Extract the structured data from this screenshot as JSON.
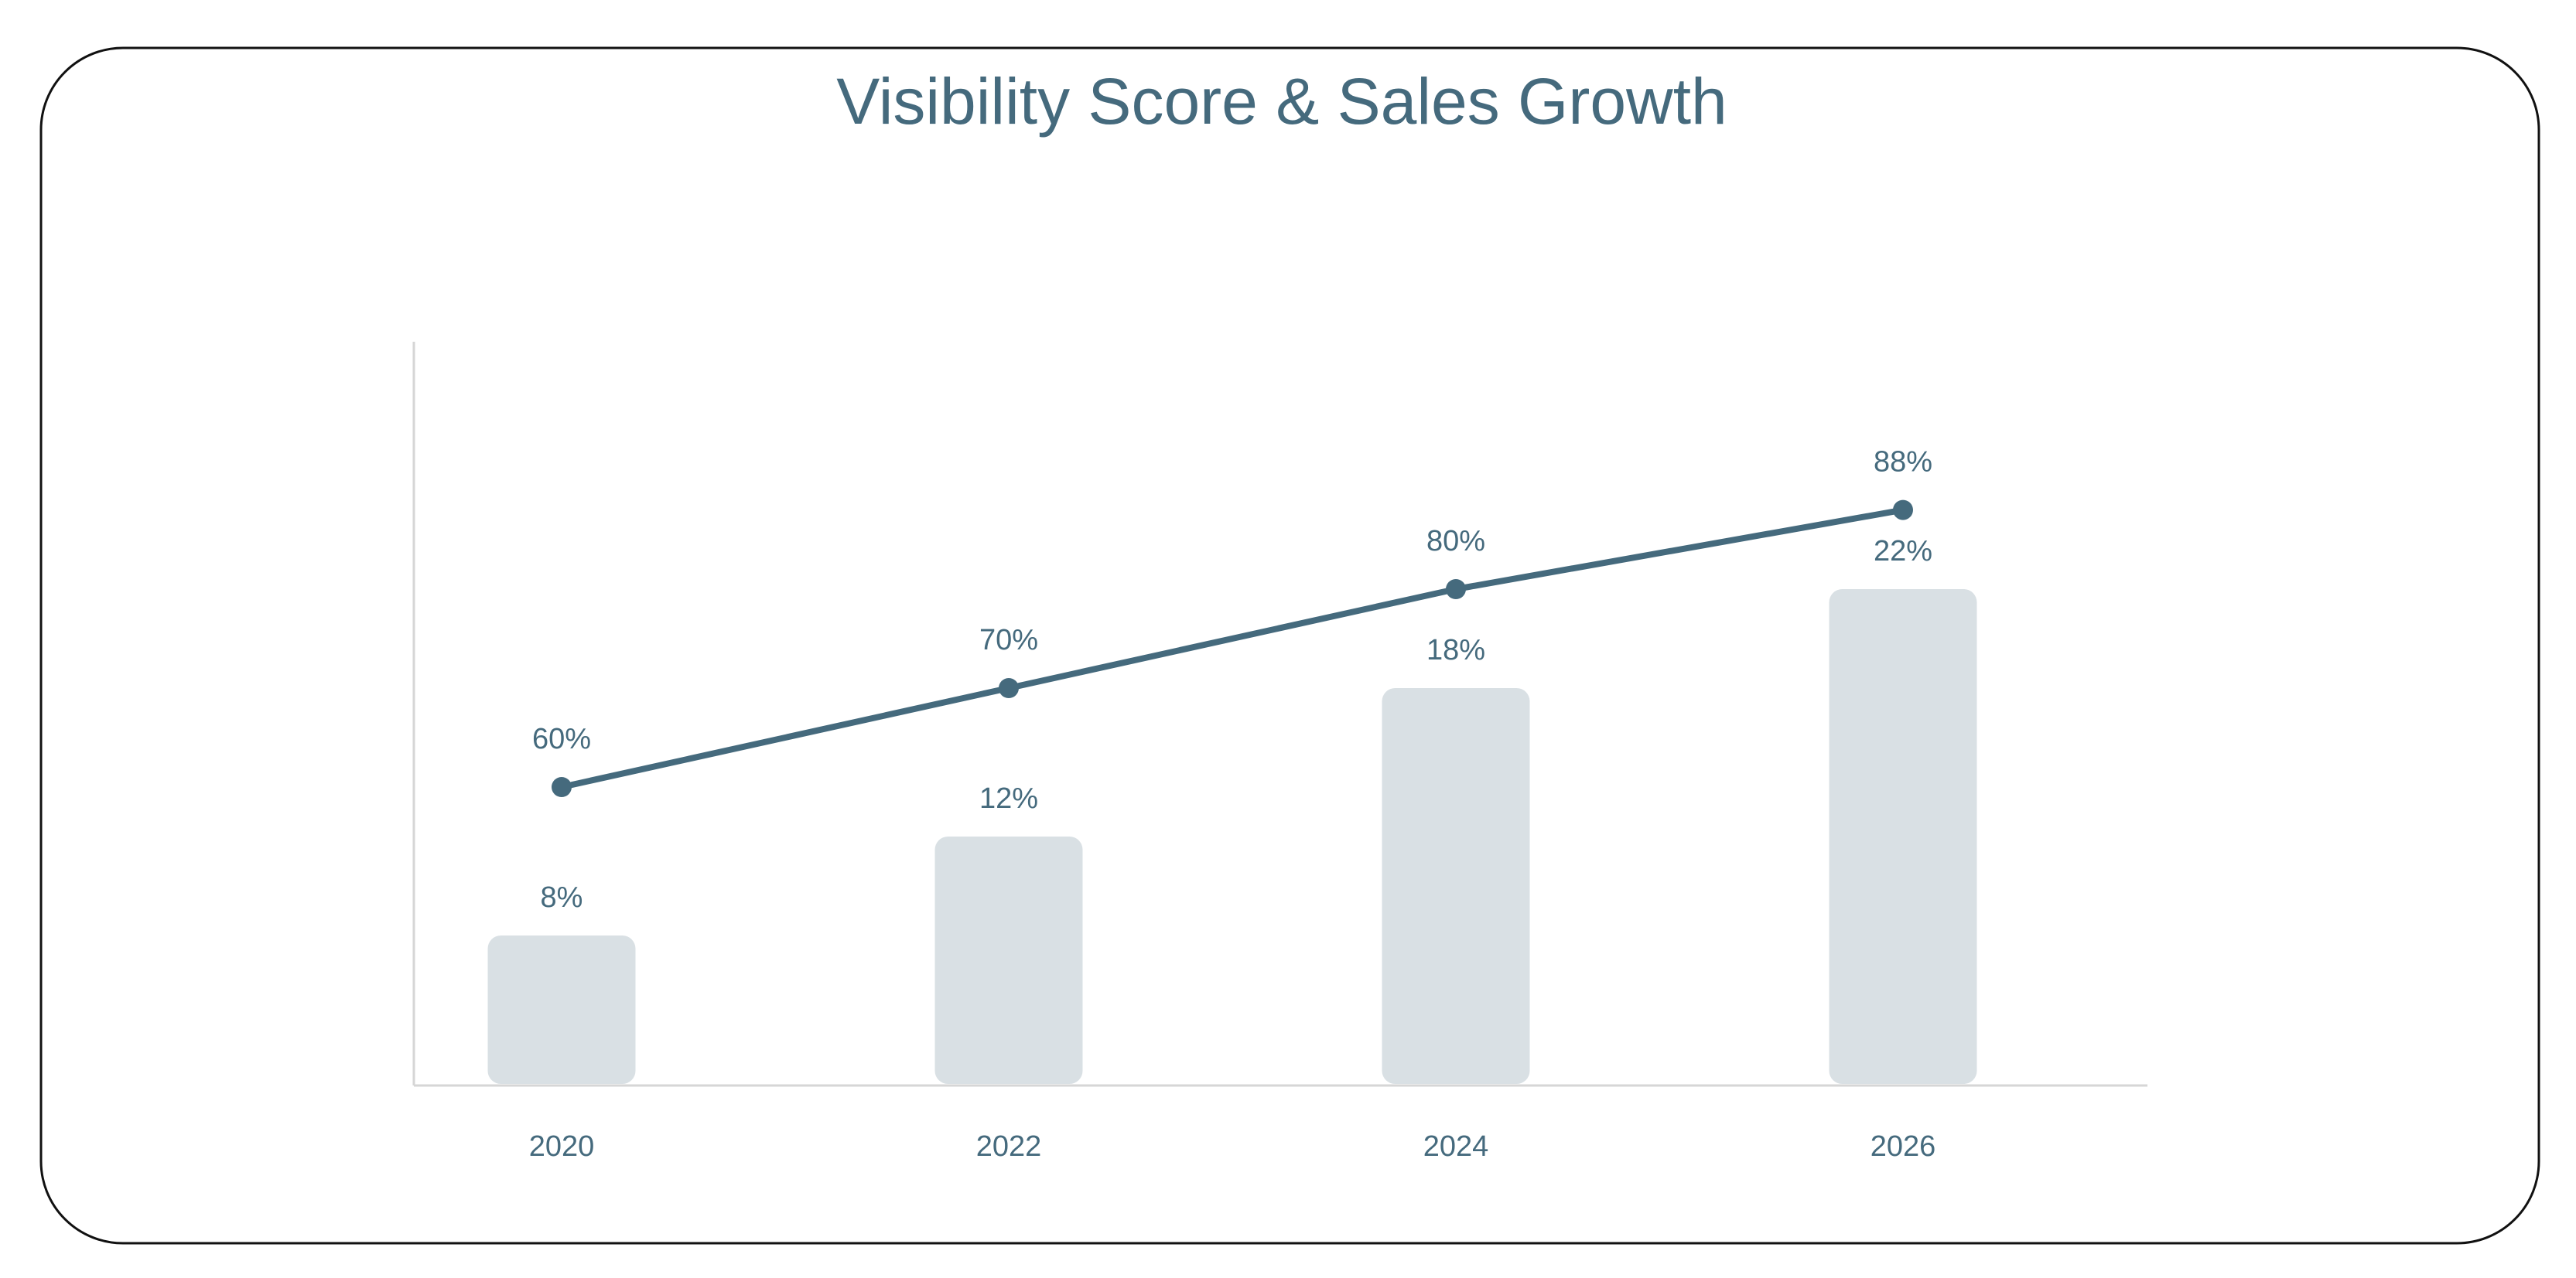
{
  "chart_data": {
    "type": "combo",
    "title": "Visibility Score & Sales Growth",
    "categories": [
      "2020",
      "2022",
      "2024",
      "2026"
    ],
    "series": [
      {
        "type": "bar",
        "color": "#d9e0e4",
        "values": [
          8,
          12,
          18,
          22
        ],
        "value_labels": [
          "8%",
          "12%",
          "18%",
          "22%"
        ]
      },
      {
        "type": "line",
        "axis": "y2",
        "color": "#456a7d",
        "values": [
          60,
          70,
          80,
          88
        ],
        "value_labels": [
          "60%",
          "70%",
          "80%",
          "88%"
        ]
      }
    ],
    "ylim": [
      2,
      32
    ],
    "y2lim": [
      30,
      105
    ]
  }
}
